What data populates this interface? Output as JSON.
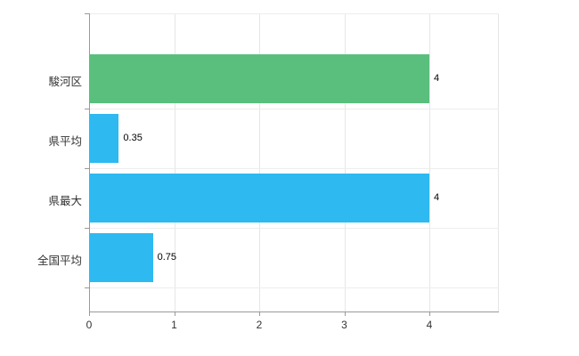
{
  "chart_data": {
    "type": "bar",
    "orientation": "horizontal",
    "title": "",
    "xlabel": "",
    "ylabel": "",
    "categories": [
      "駿河区",
      "県平均",
      "県最大",
      "全国平均"
    ],
    "values": [
      4,
      0.35,
      4,
      0.75
    ],
    "value_labels": [
      "4",
      "0.35",
      "4",
      "0.75"
    ],
    "bar_colors": [
      "#5abf7d",
      "#2eb9f1",
      "#2eb9f1",
      "#2eb9f1"
    ],
    "x_ticks": [
      0,
      1,
      2,
      3,
      4
    ],
    "x_tick_labels": [
      "0",
      "1",
      "2",
      "3",
      "4"
    ],
    "xlim": [
      0,
      4.8
    ],
    "grid": true,
    "legend": false,
    "background_color": "#ffffff",
    "axis_color": "#9a9a9a",
    "gridline_color": "#e6e6e6"
  }
}
